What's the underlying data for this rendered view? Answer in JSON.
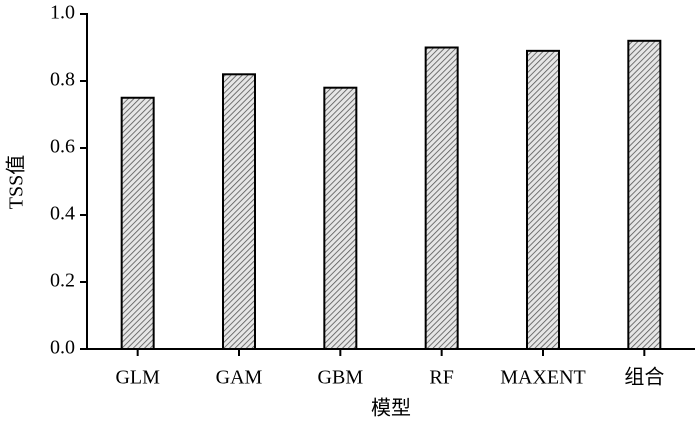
{
  "chart_data": {
    "type": "bar",
    "x_label": "模型",
    "y_label": "TSS值",
    "categories": [
      "GLM",
      "GAM",
      "GBM",
      "RF",
      "MAXENT",
      "组合"
    ],
    "values": [
      0.75,
      0.82,
      0.78,
      0.9,
      0.89,
      0.92
    ],
    "color": "#555555",
    "ylim": [
      0,
      1.0
    ],
    "yticks": [
      {
        "value": 0,
        "label": "0.0"
      },
      0.2,
      0.4,
      0.6,
      0.8,
      {
        "value": 1.0,
        "label": "1.0"
      }
    ],
    "grid": false
  }
}
